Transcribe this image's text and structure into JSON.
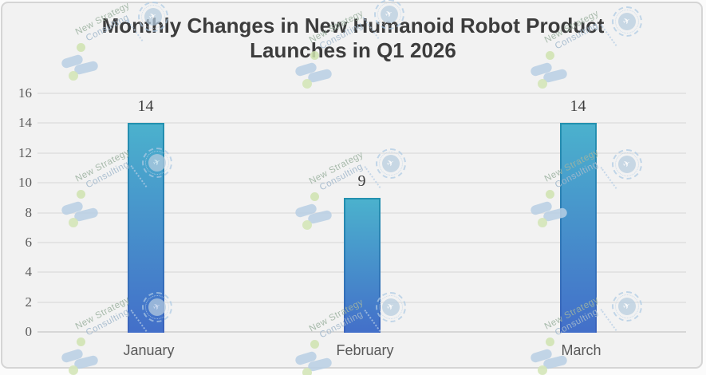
{
  "watermark": {
    "line1": "New Strategy",
    "line2": "Consulting",
    "stamp_icon": "rocket-seal",
    "blob_icon": "footprint-swoosh",
    "blob_color": "#b9cfe4",
    "dot_color": "#cfe3af"
  },
  "chart_data": {
    "type": "bar",
    "title": "Monthly Changes in New Humanoid Robot Product Launches in Q1 2026",
    "title_lines": [
      "Monthly Changes in New Humanoid Robot Product",
      "Launches in Q1 2026"
    ],
    "categories": [
      "January",
      "February",
      "March"
    ],
    "values": [
      14,
      9,
      14
    ],
    "data_labels": [
      "14",
      "9",
      "14"
    ],
    "xlabel": "",
    "ylabel": "",
    "ylim": [
      0,
      16
    ],
    "yticks": [
      0,
      2,
      4,
      6,
      8,
      10,
      12,
      14,
      16
    ],
    "grid": true,
    "legend": "none",
    "bar_fill_top": "#4bb1cd",
    "bar_fill_bottom": "#436fc9",
    "bar_border_top": "#2391af",
    "bar_border_bottom": "#3c63bd",
    "background": "#f2f2f2",
    "gridline_color": "#e4e4e4",
    "text_color": "#595959"
  }
}
